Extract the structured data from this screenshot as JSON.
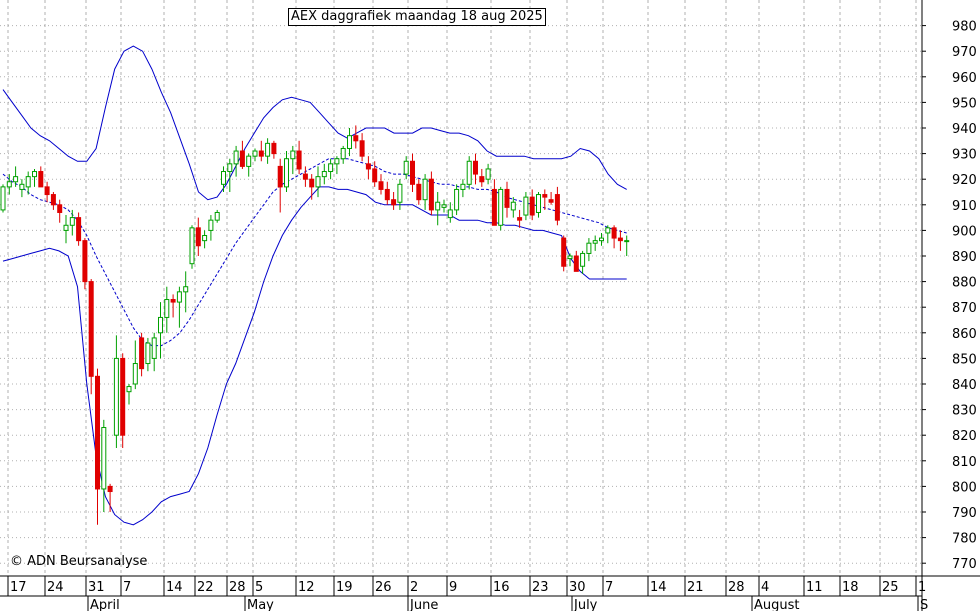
{
  "title": "AEX daggrafiek maandag 18 aug 2025",
  "copyright": "© ADN Beursanalyse",
  "colors": {
    "up": "#00a000",
    "down": "#e00000",
    "bands": "#0000cc",
    "grid": "#b0b0b0"
  },
  "chart_data": {
    "type": "candlestick",
    "title": "AEX daggrafiek maandag 18 aug 2025",
    "ylim": [
      765,
      990
    ],
    "yticks": [
      770,
      780,
      790,
      800,
      810,
      820,
      830,
      840,
      850,
      860,
      870,
      880,
      890,
      900,
      910,
      920,
      930,
      940,
      950,
      960,
      970,
      980
    ],
    "grid": true,
    "x_day_labels": [
      "17",
      "24",
      "31",
      "7",
      "14",
      "22",
      "28",
      "5",
      "12",
      "19",
      "26",
      "2",
      "9",
      "16",
      "23",
      "30",
      "7",
      "14",
      "21",
      "28",
      "4",
      "11",
      "18",
      "25",
      "1"
    ],
    "x_month_labels": [
      "April",
      "May",
      "June",
      "July",
      "August",
      "S"
    ],
    "ohlc": [
      [
        908,
        918,
        907,
        917
      ],
      [
        917,
        922,
        914,
        919
      ],
      [
        919,
        925,
        917,
        921
      ],
      [
        916,
        920,
        913,
        918
      ],
      [
        917,
        923,
        914,
        921
      ],
      [
        921,
        924,
        917,
        923
      ],
      [
        923,
        925,
        918,
        917
      ],
      [
        917,
        919,
        911,
        914
      ],
      [
        914,
        915,
        908,
        910
      ],
      [
        910,
        912,
        903,
        907
      ],
      [
        900,
        906,
        895,
        902
      ],
      [
        902,
        908,
        898,
        905
      ],
      [
        905,
        907,
        894,
        896
      ],
      [
        896,
        897,
        877,
        880
      ],
      [
        880,
        881,
        836,
        843
      ],
      [
        843,
        846,
        785,
        799
      ],
      [
        799,
        826,
        790,
        823
      ],
      [
        800,
        801,
        790,
        798
      ],
      [
        820,
        859,
        815,
        850
      ],
      [
        850,
        852,
        815,
        820
      ],
      [
        837,
        840,
        832,
        839
      ],
      [
        840,
        857,
        838,
        848
      ],
      [
        858,
        860,
        843,
        846
      ],
      [
        848,
        858,
        845,
        856
      ],
      [
        850,
        860,
        845,
        858
      ],
      [
        860,
        872,
        850,
        866
      ],
      [
        866,
        878,
        860,
        873
      ],
      [
        873,
        875,
        866,
        872
      ],
      [
        872,
        878,
        862,
        876
      ],
      [
        876,
        884,
        868,
        878
      ],
      [
        887,
        902,
        885,
        901
      ],
      [
        901,
        905,
        890,
        894
      ],
      [
        896,
        900,
        893,
        898
      ],
      [
        900,
        906,
        896,
        904
      ],
      [
        904,
        908,
        903,
        907
      ],
      [
        918,
        925,
        915,
        923
      ],
      [
        923,
        928,
        915,
        926
      ],
      [
        926,
        933,
        921,
        931
      ],
      [
        931,
        935,
        924,
        925
      ],
      [
        925,
        930,
        921,
        929
      ],
      [
        929,
        932,
        927,
        931
      ],
      [
        931,
        935,
        927,
        929
      ],
      [
        929,
        936,
        926,
        934
      ],
      [
        934,
        935,
        928,
        930
      ],
      [
        925,
        928,
        907,
        917
      ],
      [
        917,
        931,
        915,
        928
      ],
      [
        928,
        933,
        922,
        931
      ],
      [
        931,
        935,
        922,
        924
      ],
      [
        922,
        925,
        917,
        920
      ],
      [
        920,
        922,
        912,
        917
      ],
      [
        917,
        925,
        913,
        921
      ],
      [
        921,
        926,
        918,
        923
      ],
      [
        923,
        928,
        920,
        926
      ],
      [
        926,
        929,
        922,
        928
      ],
      [
        928,
        933,
        926,
        932
      ],
      [
        932,
        940,
        929,
        937
      ],
      [
        937,
        941,
        932,
        935
      ],
      [
        935,
        938,
        927,
        929
      ],
      [
        926,
        929,
        920,
        924
      ],
      [
        924,
        927,
        917,
        919
      ],
      [
        919,
        922,
        914,
        916
      ],
      [
        916,
        919,
        910,
        912
      ],
      [
        912,
        915,
        908,
        910
      ],
      [
        911,
        920,
        908,
        918
      ],
      [
        922,
        929,
        920,
        927
      ],
      [
        927,
        930,
        915,
        918
      ],
      [
        918,
        920,
        910,
        912
      ],
      [
        912,
        922,
        908,
        920
      ],
      [
        920,
        923,
        906,
        908
      ],
      [
        908,
        915,
        902,
        911
      ],
      [
        909,
        912,
        907,
        910
      ],
      [
        905,
        911,
        903,
        908
      ],
      [
        908,
        918,
        906,
        916
      ],
      [
        916,
        920,
        913,
        918
      ],
      [
        918,
        929,
        916,
        927
      ],
      [
        927,
        930,
        918,
        922
      ],
      [
        921,
        924,
        917,
        919
      ],
      [
        920,
        926,
        918,
        924
      ],
      [
        916,
        920,
        903,
        902
      ],
      [
        902,
        917,
        900,
        916
      ],
      [
        916,
        919,
        905,
        909
      ],
      [
        908,
        913,
        905,
        911
      ],
      [
        905,
        908,
        901,
        904
      ],
      [
        906,
        915,
        904,
        913
      ],
      [
        913,
        916,
        904,
        906
      ],
      [
        907,
        915,
        905,
        914
      ],
      [
        914,
        916,
        908,
        913
      ],
      [
        912,
        915,
        910,
        911
      ],
      [
        914,
        917,
        902,
        904
      ],
      [
        897,
        898,
        884,
        886
      ],
      [
        889,
        891,
        886,
        890
      ],
      [
        890,
        892,
        884,
        884
      ],
      [
        886,
        892,
        883,
        891
      ],
      [
        891,
        897,
        888,
        895
      ],
      [
        895,
        898,
        892,
        896
      ],
      [
        896,
        899,
        894,
        897
      ],
      [
        899,
        902,
        895,
        901
      ],
      [
        901,
        902,
        893,
        897
      ],
      [
        897,
        900,
        892,
        896
      ],
      [
        896,
        898,
        890,
        896
      ]
    ],
    "bollinger": {
      "upper": [
        955,
        950,
        945,
        940,
        937,
        935,
        932,
        929,
        927,
        927,
        932,
        948,
        963,
        970,
        972,
        970,
        963,
        954,
        946,
        936,
        926,
        915,
        912,
        913,
        918,
        925,
        932,
        938,
        944,
        948,
        951,
        952,
        951,
        950,
        946,
        942,
        938,
        936,
        938,
        940,
        940,
        940,
        938,
        938,
        938,
        940,
        940,
        939,
        938,
        938,
        937,
        935,
        931,
        929,
        929,
        929,
        929,
        928,
        928,
        928,
        928,
        929,
        932,
        931,
        928,
        922,
        918,
        916
      ],
      "middle": [
        922,
        919,
        917,
        914,
        912,
        911,
        910,
        908,
        904,
        898,
        890,
        883,
        876,
        869,
        862,
        857,
        855,
        855,
        857,
        860,
        865,
        871,
        877,
        883,
        889,
        895,
        900,
        905,
        910,
        915,
        918,
        920,
        922,
        924,
        926,
        928,
        928,
        928,
        927,
        926,
        925,
        923,
        922,
        922,
        921,
        920,
        919,
        918,
        918,
        917,
        917,
        916,
        916,
        915,
        913,
        912,
        911,
        910,
        909,
        908,
        907,
        906,
        905,
        904,
        903,
        901,
        900,
        899
      ],
      "lower": [
        888,
        889,
        890,
        891,
        892,
        893,
        892,
        890,
        878,
        840,
        812,
        796,
        789,
        786,
        785,
        787,
        790,
        794,
        796,
        797,
        798,
        805,
        815,
        828,
        840,
        848,
        858,
        868,
        880,
        890,
        898,
        904,
        909,
        913,
        917,
        917,
        916,
        916,
        915,
        914,
        911,
        910,
        910,
        910,
        910,
        908,
        906,
        906,
        906,
        904,
        904,
        904,
        903,
        903,
        902,
        902,
        901,
        900,
        900,
        899,
        898,
        889,
        884,
        881,
        881,
        881,
        881,
        881
      ]
    }
  }
}
